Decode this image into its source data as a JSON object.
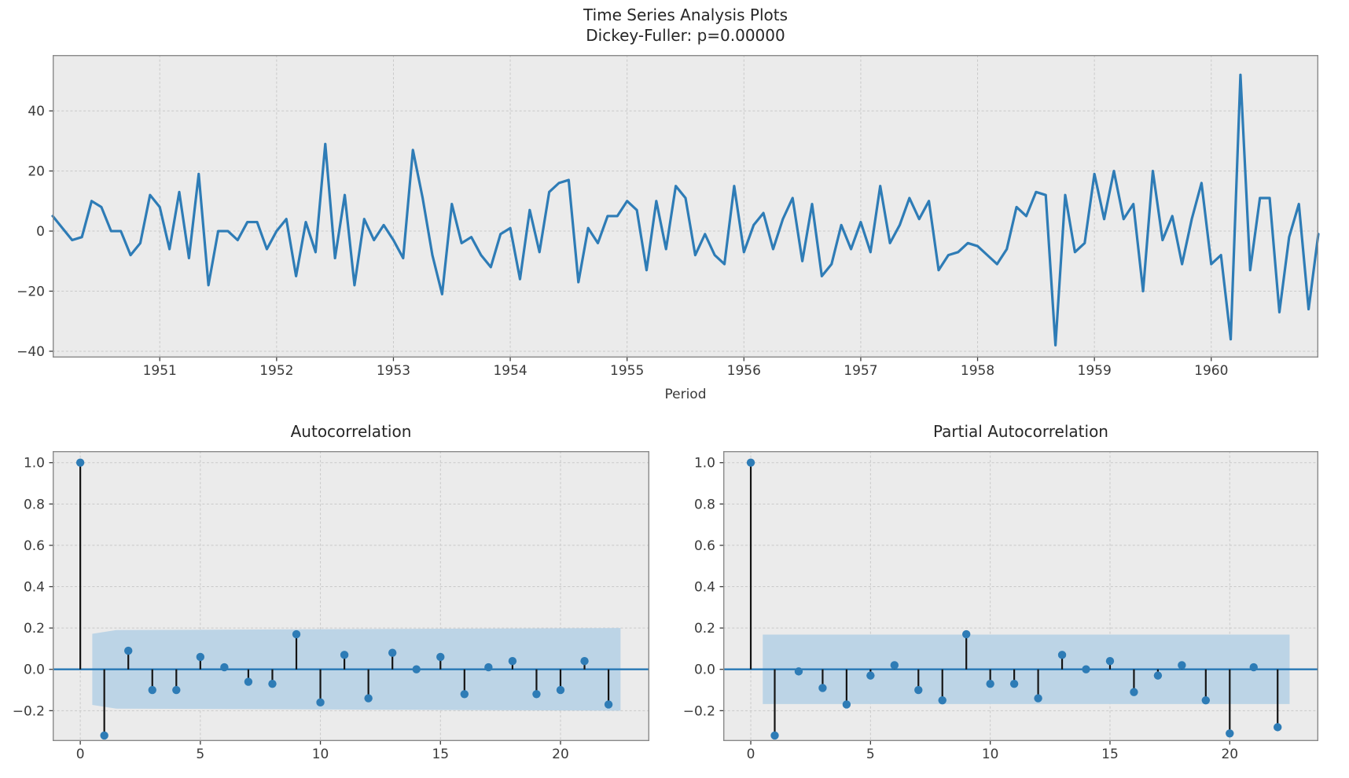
{
  "figure": {
    "title_line1": "Time Series Analysis Plots",
    "title_line2": "Dickey-Fuller: p=0.00000",
    "background": "#ffffff"
  },
  "style": {
    "axes_bg": "#ebebeb",
    "grid_color": "#c9c9c9",
    "spine_color": "#8a8a8a",
    "line_color": "#2e7cb6",
    "marker_color": "#2e7cb6",
    "stem_color": "#141414",
    "band_color": "#bcd4e6",
    "zero_line_color": "#2878b5",
    "tick_text_color": "#3a3a3a",
    "tick_mark_color": "#3a3a3a"
  },
  "chart_data": [
    {
      "type": "line",
      "name": "differenced-time-series",
      "title": "Time Series Analysis Plots — Dickey-Fuller: p=0.00000",
      "xlabel": "Period",
      "x_start": "1950-02",
      "x_end": "1960-12",
      "frequency": "monthly",
      "values": [
        5,
        1,
        -3,
        -2,
        10,
        8,
        0,
        0,
        -8,
        -4,
        12,
        8,
        -6,
        13,
        -9,
        19,
        -18,
        0,
        0,
        -3,
        3,
        3,
        -6,
        0,
        4,
        -15,
        3,
        -7,
        29,
        -9,
        12,
        -18,
        4,
        -3,
        2,
        -3,
        -9,
        27,
        11,
        -8,
        -21,
        9,
        -4,
        -2,
        -8,
        -12,
        -1,
        1,
        -16,
        7,
        -7,
        13,
        16,
        17,
        -17,
        1,
        -4,
        5,
        5,
        10,
        7,
        -13,
        10,
        -6,
        15,
        11,
        -8,
        -1,
        -8,
        -11,
        15,
        -7,
        2,
        6,
        -6,
        4,
        11,
        -10,
        9,
        -15,
        -11,
        2,
        -6,
        3,
        -7,
        15,
        -4,
        2,
        11,
        4,
        10,
        -13,
        -8,
        -7,
        -4,
        -5,
        -8,
        -11,
        -6,
        8,
        5,
        13,
        12,
        -38,
        12,
        -7,
        -4,
        19,
        4,
        20,
        4,
        9,
        -20,
        20,
        -3,
        5,
        -11,
        4,
        16,
        -11,
        -8,
        -36,
        52,
        -13,
        11,
        11,
        -27,
        -2,
        9,
        -26,
        -1
      ],
      "xticks": [
        1951,
        1952,
        1953,
        1954,
        1955,
        1956,
        1957,
        1958,
        1959,
        1960
      ],
      "xtick_labels": [
        "1951",
        "1952",
        "1953",
        "1954",
        "1955",
        "1956",
        "1957",
        "1958",
        "1959",
        "1960"
      ],
      "yticks": [
        -40,
        -20,
        0,
        20,
        40
      ],
      "ytick_labels": [
        "−40",
        "−20",
        "0",
        "20",
        "40"
      ],
      "xlim": [
        1950.0833,
        1960.9167
      ],
      "ylim": [
        -42.1,
        58.6
      ],
      "grid": true
    },
    {
      "type": "stem",
      "name": "acf",
      "title": "Autocorrelation",
      "max_lag": 22,
      "values": [
        1.0,
        -0.32,
        0.09,
        -0.1,
        -0.1,
        0.06,
        0.01,
        -0.06,
        -0.07,
        0.17,
        -0.16,
        0.07,
        -0.14,
        0.08,
        0.0,
        0.06,
        -0.12,
        0.01,
        0.04,
        -0.12,
        -0.1,
        0.04,
        -0.17
      ],
      "conf_band": {
        "x": [
          0.5,
          1.5,
          22.5
        ],
        "upper": [
          0.172,
          0.19,
          0.2
        ]
      },
      "xticks": [
        0,
        5,
        10,
        15,
        20
      ],
      "xtick_labels": [
        "0",
        "5",
        "10",
        "15",
        "20"
      ],
      "yticks": [
        1.0,
        0.8,
        0.6,
        0.4,
        0.2,
        0.0,
        -0.2
      ],
      "ytick_labels": [
        "1.0",
        "0.8",
        "0.6",
        "0.4",
        "0.2",
        "0.0",
        "−0.2"
      ],
      "xlim": [
        -1.15,
        23.7
      ],
      "ylim": [
        -0.347,
        1.056
      ],
      "grid": true
    },
    {
      "type": "stem",
      "name": "pacf",
      "title": "Partial Autocorrelation",
      "max_lag": 22,
      "values": [
        1.0,
        -0.32,
        -0.01,
        -0.09,
        -0.17,
        -0.03,
        0.02,
        -0.1,
        -0.15,
        0.17,
        -0.07,
        -0.07,
        -0.14,
        0.07,
        0.0,
        0.04,
        -0.11,
        -0.03,
        0.02,
        -0.15,
        -0.31,
        0.01,
        -0.28
      ],
      "conf_band": {
        "x": [
          0.5,
          22.5
        ],
        "upper": [
          0.168,
          0.168
        ]
      },
      "xticks": [
        0,
        5,
        10,
        15,
        20
      ],
      "xtick_labels": [
        "0",
        "5",
        "10",
        "15",
        "20"
      ],
      "yticks": [
        1.0,
        0.8,
        0.6,
        0.4,
        0.2,
        0.0,
        -0.2
      ],
      "ytick_labels": [
        "1.0",
        "0.8",
        "0.6",
        "0.4",
        "0.2",
        "0.0",
        "−0.2"
      ],
      "xlim": [
        -1.15,
        23.7
      ],
      "ylim": [
        -0.347,
        1.056
      ],
      "grid": true
    }
  ]
}
